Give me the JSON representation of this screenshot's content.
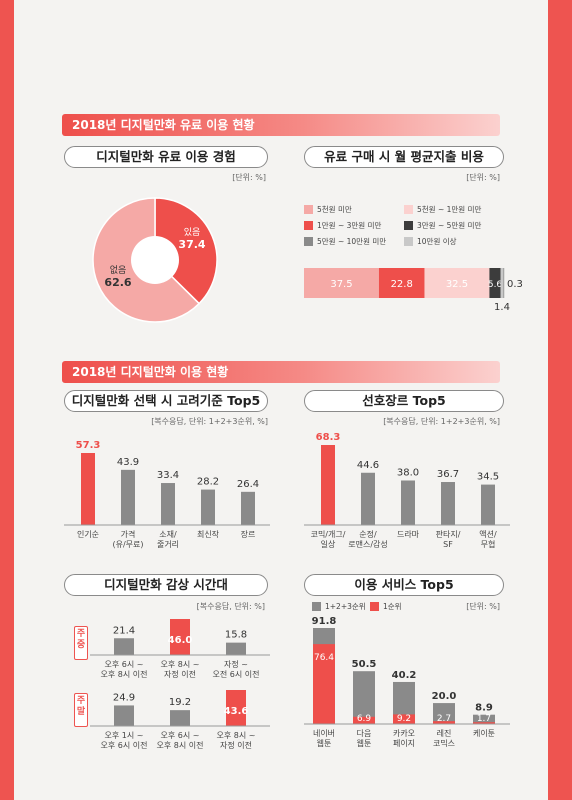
{
  "colors": {
    "accent": "#ee4f4b",
    "pink": "#f5a9a6",
    "gray": "#8a8a8a",
    "light_pink": "#fbd1cf",
    "dark": "#3c3c3c"
  },
  "banners": [
    "2018년 디지털만화 유료 이용 현황",
    "2018년 디지털만화 이용 현황"
  ],
  "paid_experience": {
    "title": "디지털만화 유료 이용 경험",
    "unit": "[단위: %]",
    "chart_data": {
      "type": "pie",
      "categories": [
        "있음",
        "없음"
      ],
      "values": [
        37.4,
        62.6
      ],
      "labels": [
        "있음\n37.4",
        "없음\n62.6"
      ]
    },
    "slice_labels": [
      {
        "name": "있음",
        "value": "37.4"
      },
      {
        "name": "없음",
        "value": "62.6"
      }
    ]
  },
  "monthly_spend": {
    "title": "유료 구매 시 월 평균지출 비용",
    "unit": "[단위: %]",
    "legend": [
      "5천원 미만",
      "5천원 ~ 1만원 미만",
      "1만원 ~ 3만원 미만",
      "3만원 ~ 5만원 미만",
      "5만원 ~ 10만원 미만",
      "10만원 이상"
    ],
    "legend_colors": [
      "#f5a9a6",
      "#fbd1cf",
      "#ee4f4b",
      "#3c3c3c",
      "#8a8a8a",
      "#c8c8c8"
    ],
    "chart_data": {
      "type": "bar",
      "orientation": "horizontal-stacked",
      "categories": [
        "5천원 미만",
        "5천원 ~ 1만원 미만",
        "1만원 ~ 3만원 미만",
        "3만원 ~ 5만원 미만",
        "5만원 ~ 10만원 미만",
        "10만원 이상"
      ],
      "values": [
        37.5,
        32.5,
        22.8,
        5.6,
        0.3,
        1.4
      ]
    },
    "value_labels": [
      "37.5",
      "32.5",
      "22.8",
      "5.6",
      "0.3",
      "1.4"
    ]
  },
  "selection_criteria": {
    "title": "디지털만화 선택 시 고려기준 Top5",
    "unit": "[복수응답, 단위: 1+2+3순위, %]",
    "chart_data": {
      "type": "bar",
      "categories": [
        "인기순",
        "가격(유/무료)",
        "소재/줄거리",
        "최신작",
        "장르"
      ],
      "values": [
        57.3,
        43.9,
        33.4,
        28.2,
        26.4
      ]
    },
    "category_lines": [
      [
        "인기순"
      ],
      [
        "가격",
        "(유/무료)"
      ],
      [
        "소재/",
        "줄거리"
      ],
      [
        "최신작"
      ],
      [
        "장르"
      ]
    ],
    "value_labels": [
      "57.3",
      "43.9",
      "33.4",
      "28.2",
      "26.4"
    ]
  },
  "preferred_genre": {
    "title": "선호장르 Top5",
    "unit": "[복수응답, 단위: 1+2+3순위, %]",
    "chart_data": {
      "type": "bar",
      "categories": [
        "코믹/개그/일상",
        "순정/로맨스/감성",
        "드라마",
        "판타지/SF",
        "액션/무협"
      ],
      "values": [
        68.3,
        44.6,
        38.0,
        36.7,
        34.5
      ]
    },
    "category_lines": [
      [
        "코믹/개그/",
        "일상"
      ],
      [
        "순정/",
        "로맨스/감성"
      ],
      [
        "드라마"
      ],
      [
        "판타지/",
        "SF"
      ],
      [
        "액션/",
        "무협"
      ]
    ],
    "value_labels": [
      "68.3",
      "44.6",
      "38.0",
      "36.7",
      "34.5"
    ]
  },
  "viewing_time": {
    "title": "디지털만화 감상 시간대",
    "unit": "[복수응답, 단위: %]",
    "groups": [
      "주중",
      "주말"
    ],
    "chart_data": [
      {
        "type": "bar",
        "name": "주중",
        "categories": [
          "오후 6시 ~ 오후 8시 이전",
          "오후 8시 ~ 자정 이전",
          "자정 ~ 오전 6시 이전"
        ],
        "values": [
          21.4,
          46.0,
          15.8
        ]
      },
      {
        "type": "bar",
        "name": "주말",
        "categories": [
          "오후 1시 ~ 오후 6시 이전",
          "오후 6시 ~ 오후 8시 이전",
          "오후 8시 ~ 자정 이전"
        ],
        "values": [
          24.9,
          19.2,
          43.6
        ]
      }
    ],
    "weekday_lines": [
      [
        "오후 6시 ~",
        "오후 8시 이전"
      ],
      [
        "오후 8시 ~",
        "자정 이전"
      ],
      [
        "자정 ~",
        "오전 6시 이전"
      ]
    ],
    "weekend_lines": [
      [
        "오후 1시 ~",
        "오후 6시 이전"
      ],
      [
        "오후 6시 ~",
        "오후 8시 이전"
      ],
      [
        "오후 8시 ~",
        "자정 이전"
      ]
    ],
    "weekday_labels": [
      "21.4",
      "46.0",
      "15.8"
    ],
    "weekend_labels": [
      "24.9",
      "19.2",
      "43.6"
    ]
  },
  "services": {
    "title": "이용 서비스 Top5",
    "unit": "[단위: %]",
    "legend": [
      "1+2+3순위",
      "1순위"
    ],
    "chart_data": {
      "type": "bar",
      "categories": [
        "네이버 웹툰",
        "다음 웹툰",
        "카카오 페이지",
        "레진 코믹스",
        "케이툰"
      ],
      "series": [
        {
          "name": "1+2+3순위",
          "values": [
            91.8,
            50.5,
            40.2,
            20.0,
            8.9
          ]
        },
        {
          "name": "1순위",
          "values": [
            76.4,
            6.9,
            9.2,
            2.7,
            1.7
          ]
        }
      ]
    },
    "category_lines": [
      [
        "네이버",
        "웹툰"
      ],
      [
        "다음",
        "웹툰"
      ],
      [
        "카카오",
        "페이지"
      ],
      [
        "레진",
        "코믹스"
      ],
      [
        "케이툰"
      ]
    ],
    "total_labels": [
      "91.8",
      "50.5",
      "40.2",
      "20.0",
      "8.9"
    ],
    "first_labels": [
      "76.4",
      "6.9",
      "9.2",
      "2.7",
      "1.7"
    ]
  }
}
